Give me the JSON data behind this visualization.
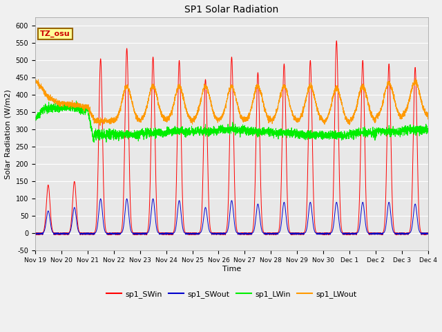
{
  "title": "SP1 Solar Radiation",
  "ylabel": "Solar Radiation (W/m2)",
  "xlabel": "Time",
  "ylim": [
    -50,
    625
  ],
  "xlim": [
    0,
    15.0
  ],
  "bg_color": "#e8e8e8",
  "fig_bg_color": "#f0f0f0",
  "annotation_text": "TZ_osu",
  "annotation_color": "#cc0000",
  "annotation_bg": "#ffff99",
  "annotation_border": "#996600",
  "series_colors": {
    "sp1_SWin": "#ff0000",
    "sp1_SWout": "#0000cc",
    "sp1_LWin": "#00ee00",
    "sp1_LWout": "#ff9900"
  },
  "xtick_labels": [
    "Nov 19",
    "Nov 20",
    "Nov 21",
    "Nov 22",
    "Nov 23",
    "Nov 24",
    "Nov 25",
    "Nov 26",
    "Nov 27",
    "Nov 28",
    "Nov 29",
    "Nov 30",
    "Dec 1",
    "Dec 2",
    "Dec 3",
    "Dec 4"
  ],
  "xtick_positions": [
    0,
    1,
    2,
    3,
    4,
    5,
    6,
    7,
    8,
    9,
    10,
    11,
    12,
    13,
    14,
    15
  ],
  "ytick_labels": [
    "-50",
    "0",
    "50",
    "100",
    "150",
    "200",
    "250",
    "300",
    "350",
    "400",
    "450",
    "500",
    "550",
    "600"
  ],
  "ytick_positions": [
    -50,
    0,
    50,
    100,
    150,
    200,
    250,
    300,
    350,
    400,
    450,
    500,
    550,
    600
  ]
}
